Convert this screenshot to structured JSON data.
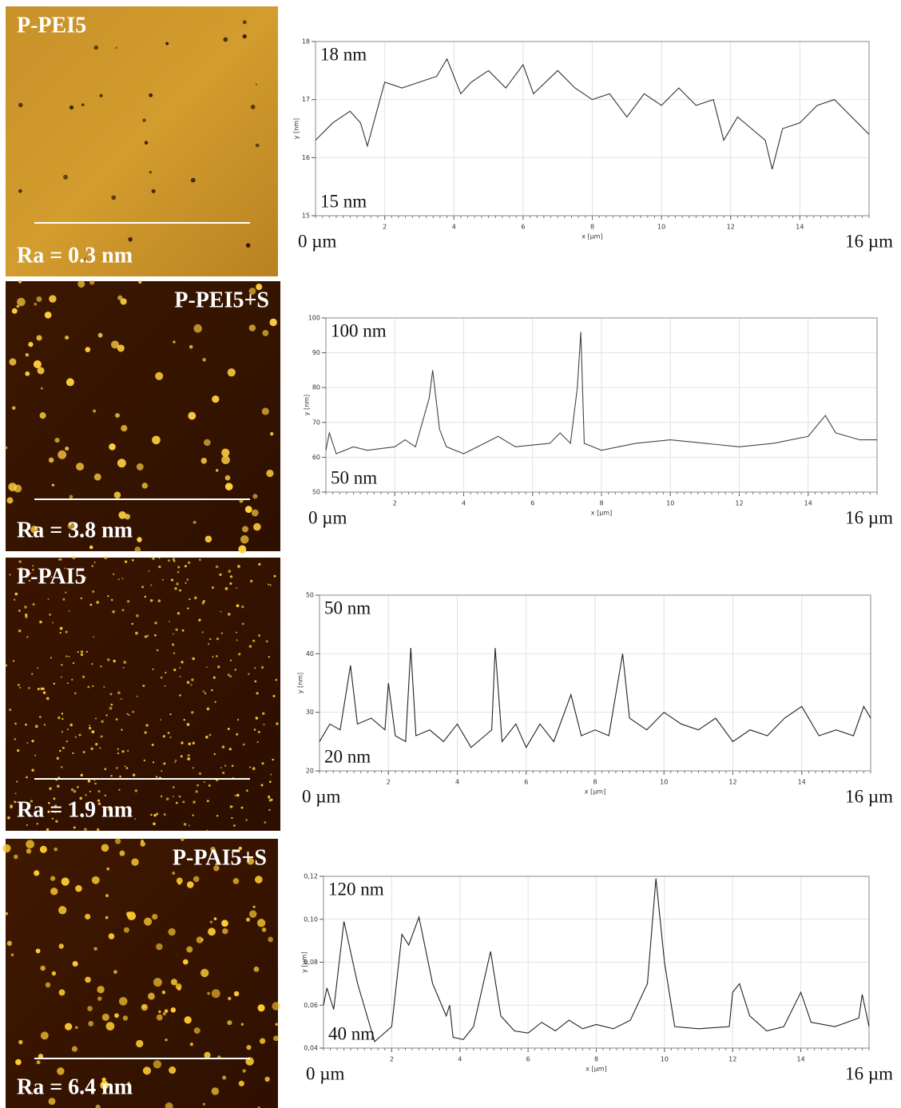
{
  "chart_data": [
    {
      "type": "line",
      "image_label": "P-PEI5",
      "roughness": "Ra = 0.3 nm",
      "xlabel": "x [µm]",
      "ylabel": "y [nm]",
      "y_max_label": "18 nm",
      "y_min_label": "15 nm",
      "x_start_label": "0 µm",
      "x_end_label": "16 µm",
      "xlim": [
        0,
        16
      ],
      "xticks": [
        2,
        4,
        6,
        8,
        10,
        12,
        14
      ],
      "ylim": [
        15,
        18
      ],
      "yticks": [
        15,
        16,
        17,
        18
      ],
      "grid": true,
      "color": "#333333",
      "x": [
        0,
        0.5,
        1,
        1.3,
        1.5,
        2,
        2.5,
        3,
        3.5,
        3.8,
        4.2,
        4.5,
        5,
        5.5,
        6,
        6.3,
        7,
        7.5,
        8,
        8.5,
        9,
        9.5,
        10,
        10.5,
        11,
        11.5,
        11.8,
        12.2,
        12.6,
        13,
        13.2,
        13.5,
        14,
        14.5,
        15,
        15.5,
        16
      ],
      "values": [
        16.3,
        16.6,
        16.8,
        16.6,
        16.2,
        17.3,
        17.2,
        17.3,
        17.4,
        17.7,
        17.1,
        17.3,
        17.5,
        17.2,
        17.6,
        17.1,
        17.5,
        17.2,
        17.0,
        17.1,
        16.7,
        17.1,
        16.9,
        17.2,
        16.9,
        17.0,
        16.3,
        16.7,
        16.5,
        16.3,
        15.8,
        16.5,
        16.6,
        16.9,
        17.0,
        16.7,
        16.4
      ]
    },
    {
      "type": "line",
      "image_label": "P-PEI5+S",
      "roughness": "Ra = 3.8 nm",
      "xlabel": "x [µm]",
      "ylabel": "y [nm]",
      "y_max_label": "100 nm",
      "y_min_label": "50 nm",
      "x_start_label": "0 µm",
      "x_end_label": "16 µm",
      "xlim": [
        0,
        16
      ],
      "xticks": [
        2,
        4,
        6,
        8,
        10,
        12,
        14
      ],
      "ylim": [
        50,
        100
      ],
      "yticks": [
        50,
        60,
        70,
        80,
        90,
        100
      ],
      "grid": true,
      "color": "#444444",
      "x": [
        0,
        0.1,
        0.3,
        0.8,
        1.2,
        2,
        2.3,
        2.6,
        3,
        3.1,
        3.3,
        3.5,
        4,
        5,
        5.5,
        6.5,
        6.8,
        7.1,
        7.3,
        7.4,
        7.5,
        8,
        9,
        10,
        11,
        12,
        13,
        14,
        14.5,
        14.8,
        15.5,
        16
      ],
      "values": [
        62,
        67,
        61,
        63,
        62,
        63,
        65,
        63,
        77,
        85,
        68,
        63,
        61,
        66,
        63,
        64,
        67,
        64,
        80,
        96,
        64,
        62,
        64,
        65,
        64,
        63,
        64,
        66,
        72,
        67,
        65,
        65
      ]
    },
    {
      "type": "line",
      "image_label": "P-PAI5",
      "roughness": "Ra = 1.9 nm",
      "xlabel": "x [µm]",
      "ylabel": "y [nm]",
      "y_max_label": "50 nm",
      "y_min_label": "20 nm",
      "x_start_label": "0 µm",
      "x_end_label": "16 µm",
      "xlim": [
        0,
        16
      ],
      "xticks": [
        2,
        4,
        6,
        8,
        10,
        12,
        14
      ],
      "ylim": [
        20,
        50
      ],
      "yticks": [
        20,
        30,
        40,
        50
      ],
      "grid": true,
      "color": "#222222",
      "x": [
        0,
        0.3,
        0.6,
        0.9,
        1.1,
        1.5,
        1.9,
        2,
        2.2,
        2.5,
        2.65,
        2.8,
        3.2,
        3.6,
        4,
        4.4,
        4.8,
        5,
        5.1,
        5.3,
        5.7,
        6,
        6.4,
        6.8,
        7.3,
        7.6,
        8,
        8.4,
        8.8,
        9,
        9.5,
        10,
        10.5,
        11,
        11.5,
        12,
        12.5,
        13,
        13.5,
        14,
        14.5,
        15,
        15.5,
        15.8,
        16
      ],
      "values": [
        25,
        28,
        27,
        38,
        28,
        29,
        27,
        35,
        26,
        25,
        41,
        26,
        27,
        25,
        28,
        24,
        26,
        27,
        41,
        25,
        28,
        24,
        28,
        25,
        33,
        26,
        27,
        26,
        40,
        29,
        27,
        30,
        28,
        27,
        29,
        25,
        27,
        26,
        29,
        31,
        26,
        27,
        26,
        31,
        29
      ]
    },
    {
      "type": "line",
      "image_label": "P-PAI5+S",
      "roughness": "Ra = 6.4 nm",
      "xlabel": "x [µm]",
      "ylabel": "y [µm]",
      "y_max_label": "120 nm",
      "y_min_label": "40 nm",
      "x_start_label": "0 µm",
      "x_end_label": "16 µm",
      "xlim": [
        0,
        16
      ],
      "xticks": [
        2,
        4,
        6,
        8,
        10,
        12,
        14
      ],
      "ylim": [
        0.04,
        0.12
      ],
      "yticks": [
        {
          "value": 0.04,
          "label": "0,04"
        },
        {
          "value": 0.06,
          "label": "0,06"
        },
        {
          "value": 0.08,
          "label": "0,08"
        },
        {
          "value": 0.1,
          "label": "0,10"
        },
        {
          "value": 0.12,
          "label": "0,12"
        }
      ],
      "grid": true,
      "color": "#222222",
      "x": [
        0,
        0.1,
        0.3,
        0.6,
        1,
        1.5,
        2,
        2.3,
        2.5,
        2.8,
        3.2,
        3.6,
        3.7,
        3.8,
        4.1,
        4.4,
        4.9,
        5.2,
        5.6,
        6,
        6.4,
        6.8,
        7.2,
        7.6,
        8,
        8.5,
        9,
        9.5,
        9.75,
        10,
        10.3,
        11,
        11.9,
        12,
        12.2,
        12.5,
        13,
        13.5,
        14,
        14.3,
        15,
        15.7,
        15.8,
        16
      ],
      "values": [
        0.06,
        0.068,
        0.058,
        0.099,
        0.07,
        0.043,
        0.05,
        0.093,
        0.088,
        0.101,
        0.07,
        0.055,
        0.06,
        0.045,
        0.044,
        0.05,
        0.085,
        0.055,
        0.048,
        0.047,
        0.052,
        0.048,
        0.053,
        0.049,
        0.051,
        0.049,
        0.053,
        0.07,
        0.119,
        0.08,
        0.05,
        0.049,
        0.05,
        0.066,
        0.07,
        0.055,
        0.048,
        0.05,
        0.066,
        0.052,
        0.05,
        0.054,
        0.065,
        0.05
      ]
    }
  ]
}
